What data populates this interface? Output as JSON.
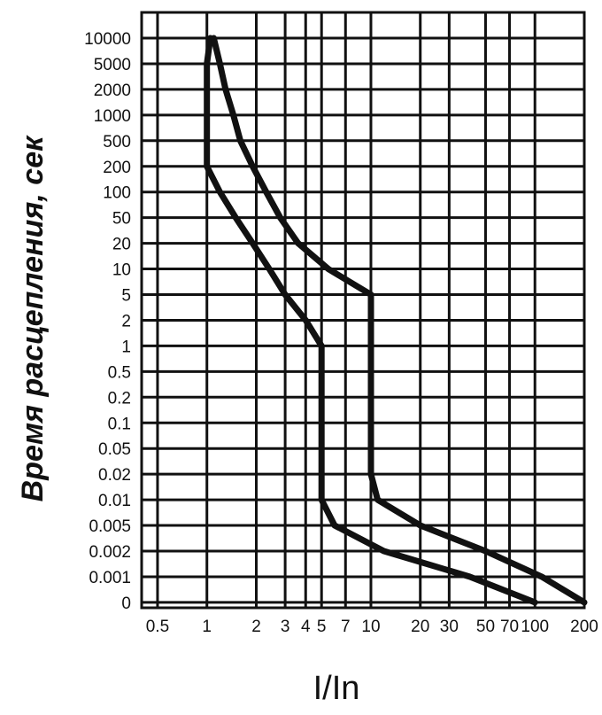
{
  "chart_data": {
    "type": "line",
    "title": "",
    "xlabel": "I/In",
    "ylabel": "Время расцепления, сек",
    "x_scale": "log",
    "x_ticks": [
      "0.5",
      "1",
      "2",
      "3",
      "4",
      "5",
      "7",
      "10",
      "20",
      "30",
      "50",
      "70",
      "100",
      "200"
    ],
    "y_ticks": [
      "0",
      "0.001",
      "0.002",
      "0.005",
      "0.01",
      "0.02",
      "0.05",
      "0.1",
      "0.2",
      "0.5",
      "1",
      "2",
      "5",
      "10",
      "20",
      "50",
      "100",
      "200",
      "500",
      "1000",
      "2000",
      "5000",
      "10000"
    ],
    "xlim": [
      0.4,
      200
    ],
    "grid": true,
    "series": [
      {
        "values": [
          {
            "x": 1.05,
            "y": "10000"
          },
          {
            "x": 1.0,
            "y": "5000"
          },
          {
            "x": 1.0,
            "y": "2000"
          },
          {
            "x": 1.0,
            "y": "1000"
          },
          {
            "x": 1.0,
            "y": "500"
          },
          {
            "x": 1.0,
            "y": "200"
          },
          {
            "x": 1.2,
            "y": "100"
          },
          {
            "x": 1.5,
            "y": "50"
          },
          {
            "x": 1.9,
            "y": "20"
          },
          {
            "x": 2.4,
            "y": "10"
          },
          {
            "x": 3.0,
            "y": "5"
          },
          {
            "x": 4.0,
            "y": "2"
          },
          {
            "x": 5.0,
            "y": "1"
          },
          {
            "x": 5.0,
            "y": "0.5"
          },
          {
            "x": 5.0,
            "y": "0.2"
          },
          {
            "x": 5.0,
            "y": "0.1"
          },
          {
            "x": 5.0,
            "y": "0.05"
          },
          {
            "x": 5.0,
            "y": "0.02"
          },
          {
            "x": 5.0,
            "y": "0.01"
          },
          {
            "x": 6.0,
            "y": "0.005"
          },
          {
            "x": 12,
            "y": "0.002"
          },
          {
            "x": 40,
            "y": "0.001"
          },
          {
            "x": 100,
            "y": "0"
          }
        ]
      },
      {
        "values": [
          {
            "x": 1.1,
            "y": "10000"
          },
          {
            "x": 1.2,
            "y": "5000"
          },
          {
            "x": 1.3,
            "y": "2000"
          },
          {
            "x": 1.45,
            "y": "1000"
          },
          {
            "x": 1.6,
            "y": "500"
          },
          {
            "x": 1.9,
            "y": "200"
          },
          {
            "x": 2.3,
            "y": "100"
          },
          {
            "x": 2.8,
            "y": "50"
          },
          {
            "x": 3.6,
            "y": "20"
          },
          {
            "x": 5.5,
            "y": "10"
          },
          {
            "x": 10,
            "y": "5"
          },
          {
            "x": 10,
            "y": "2"
          },
          {
            "x": 10,
            "y": "1"
          },
          {
            "x": 10,
            "y": "0.5"
          },
          {
            "x": 10,
            "y": "0.2"
          },
          {
            "x": 10,
            "y": "0.1"
          },
          {
            "x": 10,
            "y": "0.05"
          },
          {
            "x": 10,
            "y": "0.02"
          },
          {
            "x": 11,
            "y": "0.01"
          },
          {
            "x": 20,
            "y": "0.005"
          },
          {
            "x": 50,
            "y": "0.002"
          },
          {
            "x": 110,
            "y": "0.001"
          },
          {
            "x": 200,
            "y": "0"
          }
        ]
      }
    ]
  }
}
